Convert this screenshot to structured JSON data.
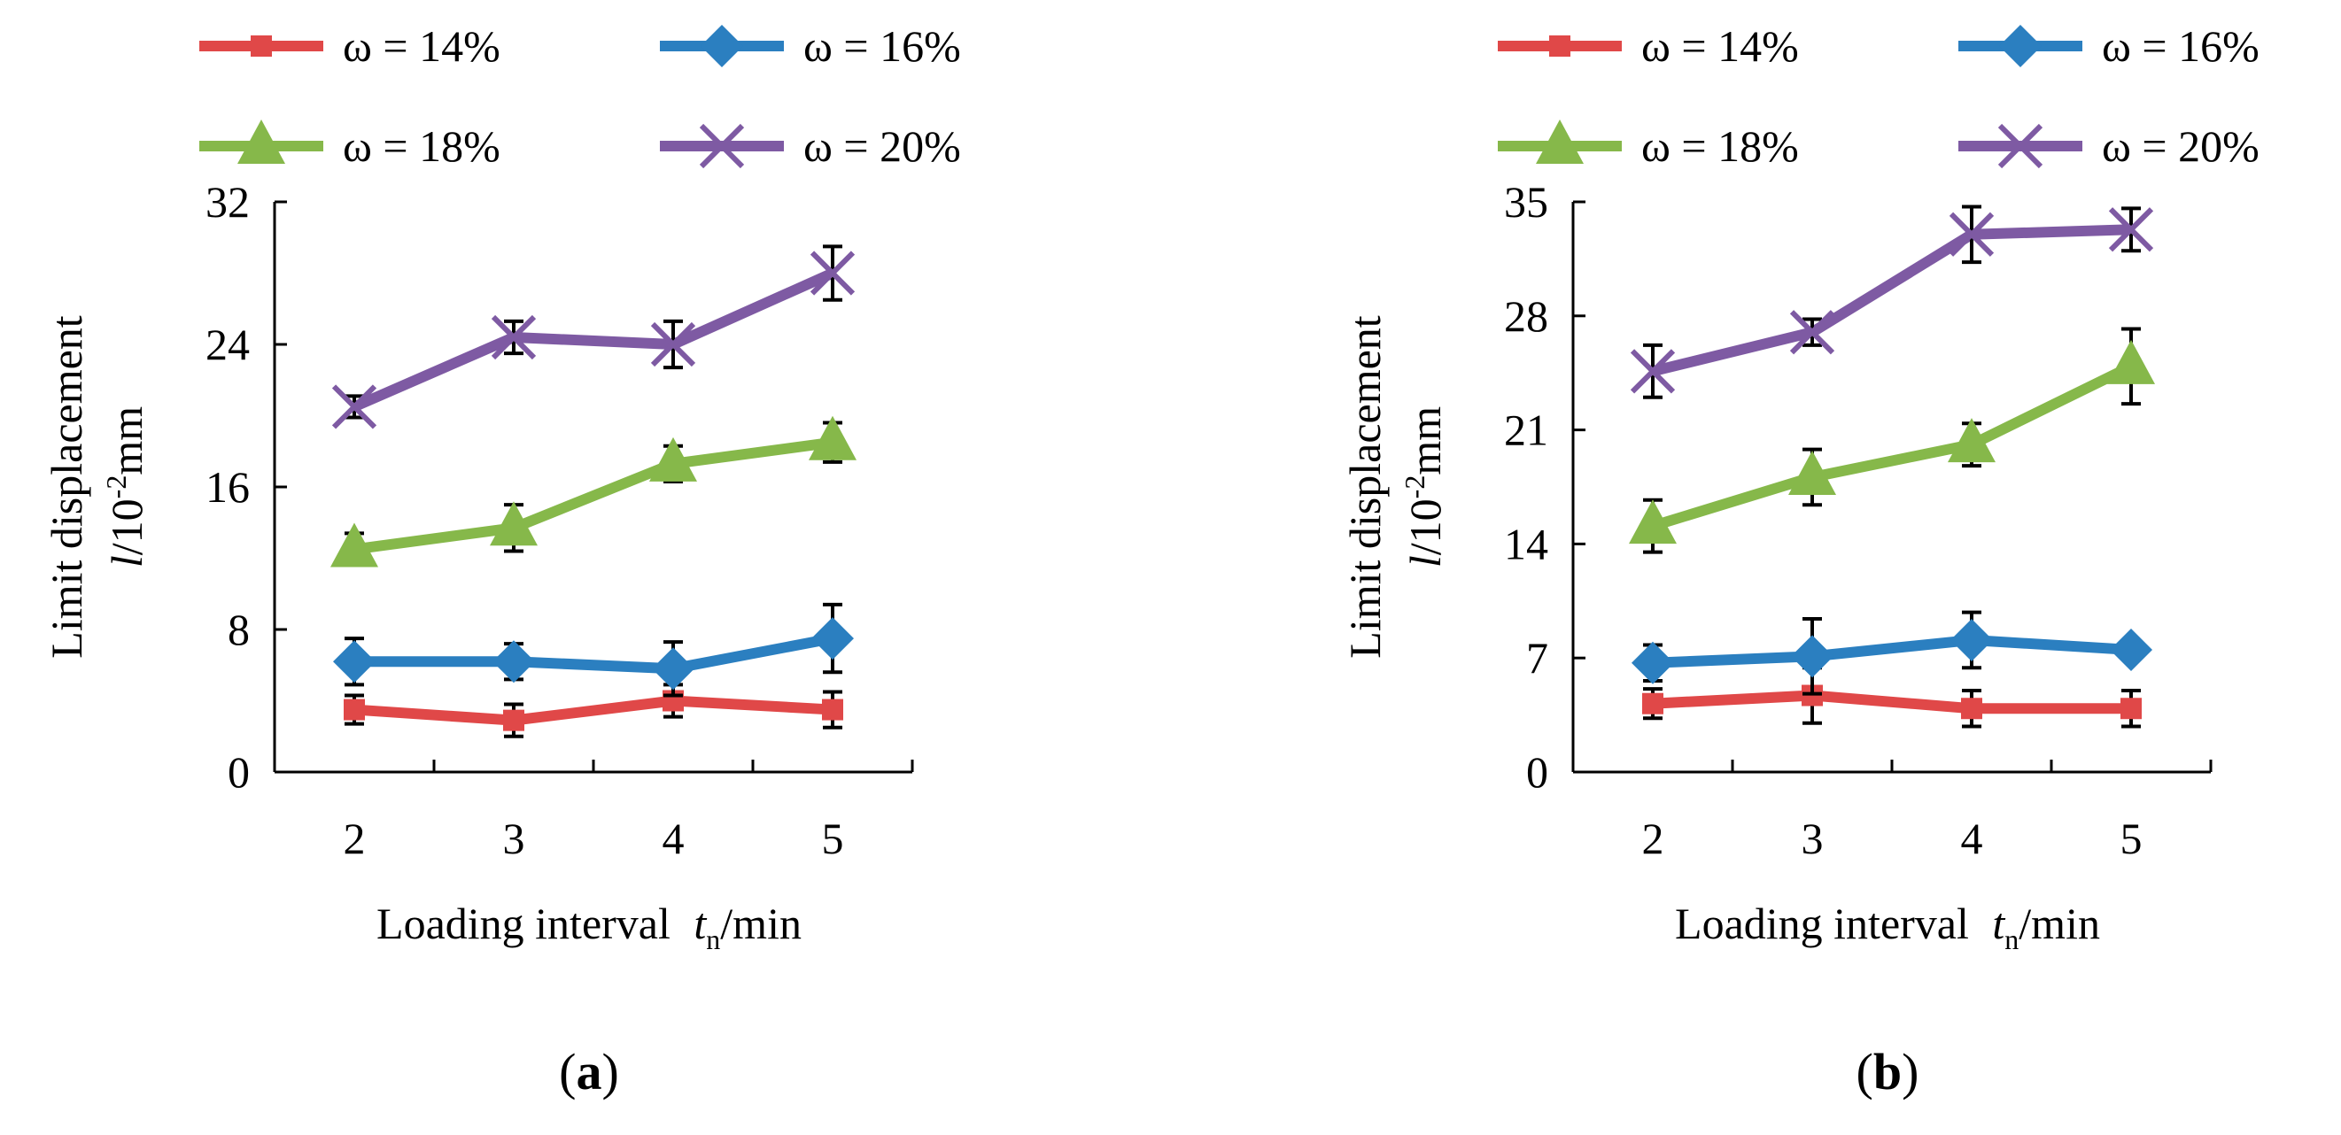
{
  "figure_legend": [
    {
      "name": "ω = 14%",
      "color": "#E04848",
      "marker": "square"
    },
    {
      "name": "ω = 16%",
      "color": "#2B7FC0",
      "marker": "diamond"
    },
    {
      "name": "ω = 18%",
      "color": "#86B84A",
      "marker": "triangle"
    },
    {
      "name": "ω = 20%",
      "color": "#7E5AA3",
      "marker": "x"
    }
  ],
  "chart_data": [
    {
      "type": "line",
      "panel_label": "a",
      "xlabel": {
        "main": "Loading interval ",
        "var": "t",
        "sub": "n",
        "unit": "/min"
      },
      "ylabel": {
        "line1": "Limit displacement",
        "var": "l",
        "base": "/10",
        "exp": "-2",
        "unit": "mm"
      },
      "x": [
        2,
        3,
        4,
        5
      ],
      "x_ticks": [
        "2",
        "3",
        "4",
        "5"
      ],
      "ylim": [
        0,
        32
      ],
      "y_ticks": [
        "0",
        "8",
        "16",
        "24",
        "32"
      ],
      "legend_position": "top",
      "series": [
        {
          "name": "ω = 14%",
          "values": [
            3.5,
            2.9,
            4.0,
            3.5
          ],
          "errors": [
            0.8,
            0.9,
            0.9,
            1.0
          ]
        },
        {
          "name": "ω = 16%",
          "values": [
            6.2,
            6.2,
            5.8,
            7.5
          ],
          "errors": [
            1.3,
            1.0,
            1.5,
            1.9
          ]
        },
        {
          "name": "ω = 18%",
          "values": [
            12.5,
            13.7,
            17.3,
            18.5
          ],
          "errors": [
            0.9,
            1.3,
            1.0,
            1.1
          ]
        },
        {
          "name": "ω = 20%",
          "values": [
            20.5,
            24.4,
            24.0,
            28.0
          ],
          "errors": [
            0.6,
            0.9,
            1.3,
            1.5
          ]
        }
      ]
    },
    {
      "type": "line",
      "panel_label": "b",
      "xlabel": {
        "main": "Loading interval ",
        "var": "t",
        "sub": "n",
        "unit": "/min"
      },
      "ylabel": {
        "line1": "Limit displacement",
        "var": "l",
        "base": "/10",
        "exp": "-2",
        "unit": "mm"
      },
      "x": [
        2,
        3,
        4,
        5
      ],
      "x_ticks": [
        "2",
        "3",
        "4",
        "5"
      ],
      "ylim": [
        0,
        35
      ],
      "y_ticks": [
        "0",
        "7",
        "14",
        "21",
        "28",
        "35"
      ],
      "legend_position": "top",
      "series": [
        {
          "name": "ω = 14%",
          "values": [
            4.2,
            4.7,
            3.9,
            3.9
          ],
          "errors": [
            0.9,
            1.7,
            1.1,
            1.1
          ]
        },
        {
          "name": "ω = 16%",
          "values": [
            6.7,
            7.1,
            8.1,
            7.5
          ],
          "errors": [
            1.1,
            2.3,
            1.7,
            0.4
          ]
        },
        {
          "name": "ω = 18%",
          "values": [
            15.1,
            18.1,
            20.1,
            24.9
          ],
          "errors": [
            1.6,
            1.7,
            1.3,
            2.3
          ]
        },
        {
          "name": "ω = 20%",
          "values": [
            24.6,
            27.0,
            33.0,
            33.3
          ],
          "errors": [
            1.6,
            0.8,
            1.7,
            1.3
          ]
        }
      ]
    }
  ]
}
